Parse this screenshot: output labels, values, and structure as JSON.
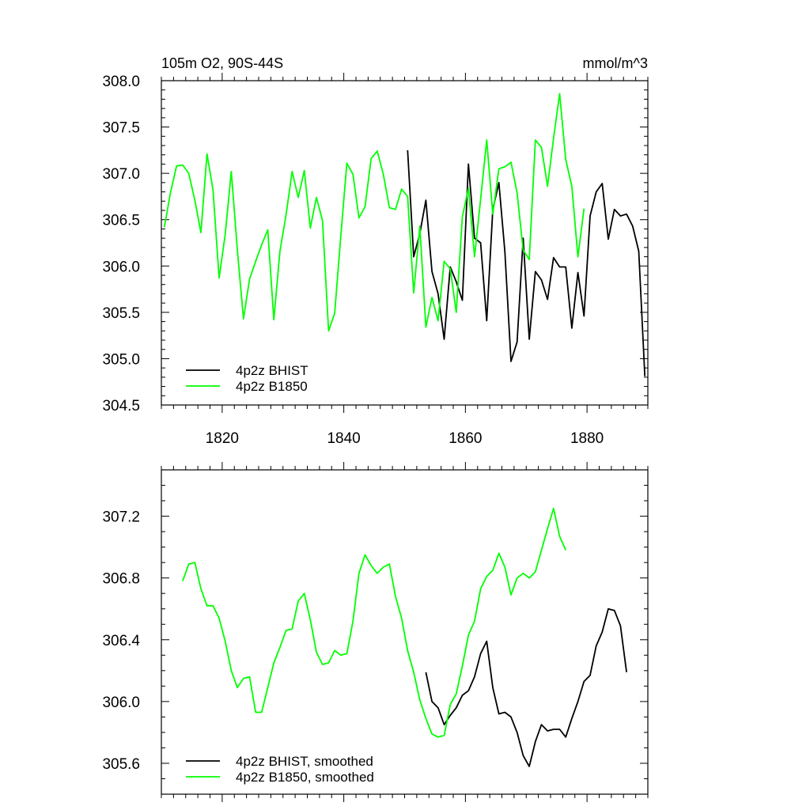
{
  "colors": {
    "bhist": "#000000",
    "b1850": "#00ff00",
    "axis": "#000000",
    "background": "#ffffff"
  },
  "chart_data": [
    {
      "type": "line",
      "title": "105m O2, 90S-44S",
      "units": "mmol/m^3",
      "xlim": [
        1810,
        1890
      ],
      "ylim": [
        304.5,
        308.0
      ],
      "x_ticks": [
        1820,
        1840,
        1860,
        1880
      ],
      "x_tick_labels": [
        "1820",
        "1840",
        "1860",
        "1880"
      ],
      "y_ticks": [
        304.5,
        305.0,
        305.5,
        306.0,
        306.5,
        307.0,
        307.5,
        308.0
      ],
      "y_tick_labels": [
        "304.5",
        "305.0",
        "305.5",
        "306.0",
        "306.5",
        "307.0",
        "307.5",
        "308.0"
      ],
      "legend_position": "bottom-left",
      "series": [
        {
          "name": "4p2z BHIST",
          "color_key": "bhist",
          "x": [
            1850.5,
            1851.5,
            1852.5,
            1853.5,
            1854.5,
            1855.5,
            1856.5,
            1857.5,
            1858.5,
            1859.5,
            1860.5,
            1861.5,
            1862.5,
            1863.5,
            1864.5,
            1865.5,
            1866.5,
            1867.5,
            1868.5,
            1869.5,
            1870.5,
            1871.5,
            1872.5,
            1873.5,
            1874.5,
            1875.5,
            1876.5,
            1877.5,
            1878.5,
            1879.5,
            1880.5,
            1881.5,
            1882.5,
            1883.5,
            1884.5,
            1885.5,
            1886.5,
            1887.5,
            1888.5,
            1889.5
          ],
          "y": [
            307.25,
            306.1,
            306.35,
            306.71,
            305.94,
            305.7,
            305.21,
            305.99,
            305.83,
            305.63,
            307.1,
            306.3,
            306.25,
            305.41,
            306.61,
            306.9,
            306.15,
            304.97,
            305.18,
            306.3,
            305.21,
            305.94,
            305.85,
            305.64,
            306.09,
            305.99,
            305.99,
            305.33,
            305.93,
            305.46,
            306.54,
            306.8,
            306.89,
            306.29,
            306.61,
            306.54,
            306.56,
            306.43,
            306.16,
            304.81
          ]
        },
        {
          "name": "4p2z B1850",
          "color_key": "b1850",
          "x": [
            1810.5,
            1811.5,
            1812.5,
            1813.5,
            1814.5,
            1815.5,
            1816.5,
            1817.5,
            1818.5,
            1819.5,
            1820.5,
            1821.5,
            1822.5,
            1823.5,
            1824.5,
            1825.5,
            1826.5,
            1827.5,
            1828.5,
            1829.5,
            1830.5,
            1831.5,
            1832.5,
            1833.5,
            1834.5,
            1835.5,
            1836.5,
            1837.5,
            1838.5,
            1839.5,
            1840.5,
            1841.5,
            1842.5,
            1843.5,
            1844.5,
            1845.5,
            1846.5,
            1847.5,
            1848.5,
            1849.5,
            1850.5,
            1851.5,
            1852.5,
            1853.5,
            1854.5,
            1855.5,
            1856.5,
            1857.5,
            1858.5,
            1859.5,
            1860.5,
            1861.5,
            1862.5,
            1863.5,
            1864.5,
            1865.5,
            1866.5,
            1867.5,
            1868.5,
            1869.5,
            1870.5,
            1871.5,
            1872.5,
            1873.5,
            1874.5,
            1875.5,
            1876.5,
            1877.5,
            1878.5,
            1879.5
          ],
          "y": [
            306.42,
            306.79,
            307.08,
            307.09,
            307.0,
            306.71,
            306.36,
            307.21,
            306.82,
            305.87,
            306.34,
            307.02,
            306.17,
            305.43,
            305.86,
            306.05,
            306.23,
            306.39,
            305.42,
            306.16,
            306.55,
            307.02,
            306.74,
            307.03,
            306.41,
            306.74,
            306.49,
            305.3,
            305.49,
            306.32,
            307.11,
            306.99,
            306.52,
            306.64,
            307.16,
            307.24,
            306.99,
            306.63,
            306.61,
            306.83,
            306.75,
            305.71,
            306.43,
            305.34,
            305.66,
            305.41,
            306.05,
            305.97,
            305.5,
            306.53,
            306.84,
            306.1,
            306.72,
            307.36,
            306.56,
            307.05,
            307.07,
            307.12,
            306.79,
            306.17,
            306.07,
            307.36,
            307.28,
            306.86,
            307.38,
            307.86,
            307.15,
            306.86,
            306.1,
            306.62
          ]
        }
      ]
    },
    {
      "type": "line",
      "xlim": [
        1810,
        1890
      ],
      "ylim": [
        305.4,
        307.5
      ],
      "x_ticks": [
        1820,
        1840,
        1860,
        1880
      ],
      "y_ticks": [
        305.6,
        306.0,
        306.4,
        306.8,
        307.2
      ],
      "y_tick_labels": [
        "305.6",
        "306.0",
        "306.4",
        "306.8",
        "307.2"
      ],
      "legend_position": "bottom-left",
      "series": [
        {
          "name": "4p2z BHIST, smoothed",
          "color_key": "bhist",
          "x": [
            1853.5,
            1854.5,
            1855.5,
            1856.5,
            1857.5,
            1858.5,
            1859.5,
            1860.5,
            1861.5,
            1862.5,
            1863.5,
            1864.5,
            1865.5,
            1866.5,
            1867.5,
            1868.5,
            1869.5,
            1870.5,
            1871.5,
            1872.5,
            1873.5,
            1874.5,
            1875.5,
            1876.5,
            1877.5,
            1878.5,
            1879.5,
            1880.5,
            1881.5,
            1882.5,
            1883.5,
            1884.5,
            1885.5,
            1886.5
          ],
          "y": [
            306.19,
            306.0,
            305.96,
            305.85,
            305.91,
            305.96,
            306.04,
            306.07,
            306.16,
            306.31,
            306.39,
            306.09,
            305.92,
            305.93,
            305.9,
            305.8,
            305.65,
            305.58,
            305.74,
            305.85,
            305.81,
            305.82,
            305.82,
            305.77,
            305.89,
            306.0,
            306.13,
            306.17,
            306.36,
            306.45,
            306.6,
            306.59,
            306.49,
            306.19
          ]
        },
        {
          "name": "4p2z B1850, smoothed",
          "color_key": "b1850",
          "x": [
            1813.5,
            1814.5,
            1815.5,
            1816.5,
            1817.5,
            1818.5,
            1819.5,
            1820.5,
            1821.5,
            1822.5,
            1823.5,
            1824.5,
            1825.5,
            1826.5,
            1827.5,
            1828.5,
            1829.5,
            1830.5,
            1831.5,
            1832.5,
            1833.5,
            1834.5,
            1835.5,
            1836.5,
            1837.5,
            1838.5,
            1839.5,
            1840.5,
            1841.5,
            1842.5,
            1843.5,
            1844.5,
            1845.5,
            1846.5,
            1847.5,
            1848.5,
            1849.5,
            1850.5,
            1851.5,
            1852.5,
            1853.5,
            1854.5,
            1855.5,
            1856.5,
            1857.5,
            1858.5,
            1859.5,
            1860.5,
            1861.5,
            1862.5,
            1863.5,
            1864.5,
            1865.5,
            1866.5,
            1867.5,
            1868.5,
            1869.5,
            1870.5,
            1871.5,
            1872.5,
            1873.5,
            1874.5,
            1875.5,
            1876.5
          ],
          "y": [
            306.78,
            306.89,
            306.9,
            306.73,
            306.62,
            306.62,
            306.54,
            306.39,
            306.2,
            306.09,
            306.15,
            306.16,
            305.93,
            305.93,
            306.09,
            306.25,
            306.35,
            306.46,
            306.47,
            306.65,
            306.7,
            306.53,
            306.32,
            306.24,
            306.25,
            306.33,
            306.3,
            306.31,
            306.52,
            306.83,
            306.95,
            306.88,
            306.83,
            306.87,
            306.89,
            306.68,
            306.54,
            306.33,
            306.19,
            306.01,
            305.89,
            305.79,
            305.77,
            305.78,
            305.98,
            306.05,
            306.23,
            306.43,
            306.52,
            306.73,
            306.81,
            306.85,
            306.96,
            306.87,
            306.69,
            306.8,
            306.83,
            306.8,
            306.84,
            306.98,
            307.12,
            307.25,
            307.07,
            306.98
          ]
        }
      ]
    }
  ]
}
